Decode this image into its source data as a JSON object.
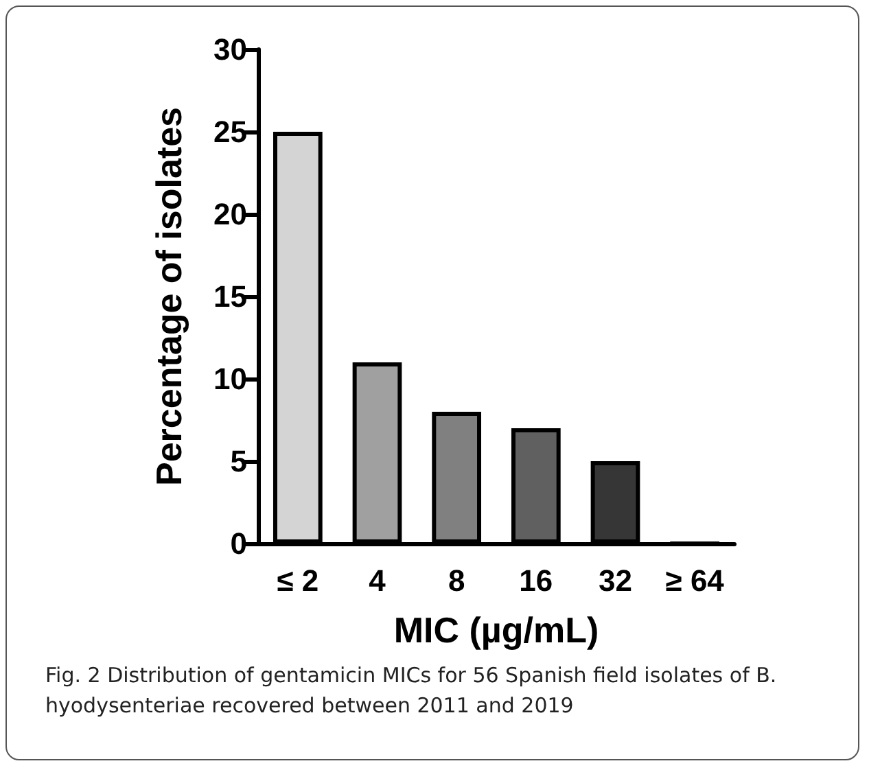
{
  "chart_data": {
    "type": "bar",
    "xlabel": "MIC (µg/mL)",
    "ylabel": "Percentage of isolates",
    "categories": [
      "≤ 2",
      "4",
      "8",
      "16",
      "32",
      "≥ 64"
    ],
    "values": [
      25,
      11,
      8,
      7,
      5,
      0
    ],
    "colors": [
      "#d4d4d4",
      "#a0a0a0",
      "#808080",
      "#606060",
      "#363636",
      "#000000"
    ],
    "ylim": [
      0,
      30
    ],
    "yticks": [
      0,
      5,
      10,
      15,
      20,
      25,
      30
    ],
    "grid": false,
    "annotations": [
      "Fig. 2  Distribution of gentamicin MICs for 56 Spanish field isolates of B. hyodysenteriae recovered between 2011 and 2019"
    ]
  }
}
